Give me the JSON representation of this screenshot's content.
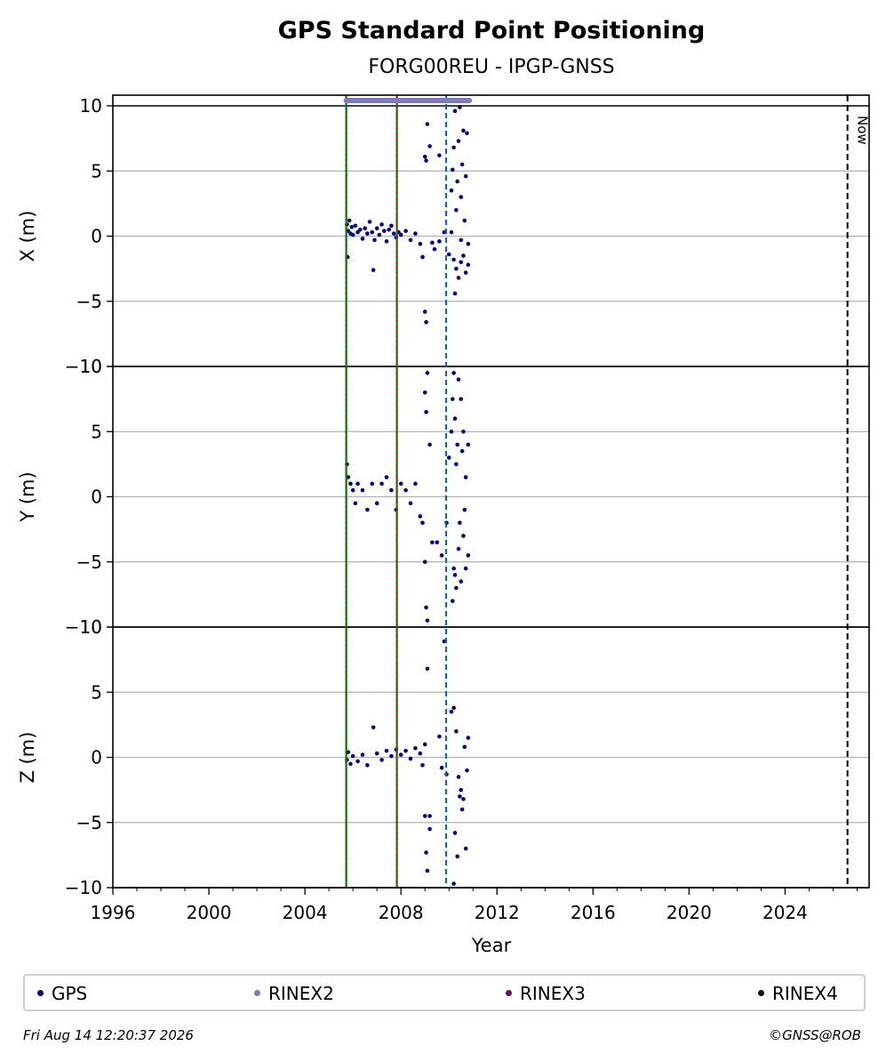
{
  "title": "GPS Standard Point Positioning",
  "subtitle": "FORG00REU - IPGP-GNSS",
  "chart_data": {
    "type": "scatter",
    "xlabel": "Year",
    "xlim": [
      1996,
      2027.5
    ],
    "xticks": [
      1996,
      2000,
      2004,
      2008,
      2012,
      2016,
      2020,
      2024
    ],
    "now_label": "Now",
    "now_year": 2026.6,
    "event_lines_red_green": [
      2005.72,
      2007.83
    ],
    "event_lines_blue": [
      2009.88
    ],
    "rinex2_coverage": [
      2005.72,
      2010.85
    ],
    "panels": [
      {
        "ylabel": "X (m)",
        "ylim": [
          -10,
          10
        ],
        "yticks": [
          -10,
          -5,
          0,
          5,
          10
        ],
        "points": [
          [
            2005.75,
            0.9
          ],
          [
            2005.8,
            0.4
          ],
          [
            2005.85,
            1.2
          ],
          [
            2005.9,
            0.2
          ],
          [
            2005.95,
            0.7
          ],
          [
            2006.0,
            0.1
          ],
          [
            2006.1,
            0.8
          ],
          [
            2006.2,
            0.3
          ],
          [
            2006.3,
            0.5
          ],
          [
            2006.4,
            -0.2
          ],
          [
            2006.5,
            0.6
          ],
          [
            2006.6,
            0.2
          ],
          [
            2006.7,
            1.1
          ],
          [
            2006.8,
            0.3
          ],
          [
            2006.9,
            -0.3
          ],
          [
            2007.0,
            0.6
          ],
          [
            2007.1,
            0.1
          ],
          [
            2007.2,
            0.9
          ],
          [
            2007.3,
            0.4
          ],
          [
            2007.4,
            -0.4
          ],
          [
            2007.5,
            0.5
          ],
          [
            2007.6,
            0.8
          ],
          [
            2007.7,
            0.2
          ],
          [
            2007.8,
            -0.1
          ],
          [
            2007.9,
            0.3
          ],
          [
            2008.0,
            0.1
          ],
          [
            2008.2,
            0.4
          ],
          [
            2008.4,
            -0.3
          ],
          [
            2008.6,
            0.2
          ],
          [
            2008.8,
            -0.6
          ],
          [
            2005.78,
            -1.6
          ],
          [
            2006.85,
            -2.6
          ],
          [
            2008.9,
            -1.6
          ],
          [
            2009.0,
            6.1
          ],
          [
            2009.05,
            5.8
          ],
          [
            2009.1,
            8.6
          ],
          [
            2009.2,
            6.9
          ],
          [
            2009.0,
            -5.8
          ],
          [
            2009.05,
            -6.6
          ],
          [
            2009.6,
            6.2
          ],
          [
            2009.3,
            -0.5
          ],
          [
            2009.4,
            -1.0
          ],
          [
            2009.6,
            -0.4
          ],
          [
            2009.8,
            0.3
          ],
          [
            2010.0,
            -1.4
          ],
          [
            2010.1,
            3.5
          ],
          [
            2010.15,
            5.1
          ],
          [
            2010.2,
            6.8
          ],
          [
            2010.25,
            9.6
          ],
          [
            2010.3,
            2.0
          ],
          [
            2010.35,
            4.2
          ],
          [
            2010.4,
            7.3
          ],
          [
            2010.45,
            9.9
          ],
          [
            2010.5,
            3.0
          ],
          [
            2010.55,
            5.5
          ],
          [
            2010.6,
            8.1
          ],
          [
            2010.65,
            1.2
          ],
          [
            2010.7,
            4.6
          ],
          [
            2010.75,
            7.9
          ],
          [
            2010.8,
            -0.6
          ],
          [
            2010.2,
            -1.8
          ],
          [
            2010.3,
            -2.5
          ],
          [
            2010.4,
            -3.2
          ],
          [
            2010.5,
            -2.0
          ],
          [
            2010.6,
            -1.5
          ],
          [
            2010.7,
            -2.8
          ],
          [
            2010.8,
            -2.2
          ],
          [
            2010.25,
            -4.4
          ],
          [
            2010.1,
            0.3
          ],
          [
            2010.5,
            -0.3
          ]
        ]
      },
      {
        "ylabel": "Y (m)",
        "ylim": [
          -10,
          10
        ],
        "yticks": [
          -10,
          -5,
          0,
          5,
          10
        ],
        "points": [
          [
            2005.75,
            2.5
          ],
          [
            2005.8,
            1.5
          ],
          [
            2005.9,
            1.0
          ],
          [
            2006.0,
            0.5
          ],
          [
            2006.1,
            -0.5
          ],
          [
            2006.2,
            1.0
          ],
          [
            2006.4,
            0.5
          ],
          [
            2006.6,
            -1.0
          ],
          [
            2006.8,
            1.0
          ],
          [
            2007.0,
            -0.5
          ],
          [
            2007.2,
            1.0
          ],
          [
            2007.4,
            1.5
          ],
          [
            2007.6,
            0.5
          ],
          [
            2007.8,
            -1.0
          ],
          [
            2008.0,
            1.0
          ],
          [
            2008.2,
            0.5
          ],
          [
            2008.4,
            -0.5
          ],
          [
            2008.6,
            1.0
          ],
          [
            2008.8,
            -1.5
          ],
          [
            2008.9,
            -2.0
          ],
          [
            2009.0,
            8.0
          ],
          [
            2009.05,
            6.5
          ],
          [
            2009.1,
            9.5
          ],
          [
            2009.0,
            -5.0
          ],
          [
            2009.05,
            -8.5
          ],
          [
            2009.1,
            -9.5
          ],
          [
            2009.2,
            4.0
          ],
          [
            2009.3,
            -3.5
          ],
          [
            2009.5,
            -3.5
          ],
          [
            2009.7,
            -4.5
          ],
          [
            2009.9,
            -2.0
          ],
          [
            2010.0,
            3.0
          ],
          [
            2010.1,
            5.0
          ],
          [
            2010.15,
            7.5
          ],
          [
            2010.2,
            9.5
          ],
          [
            2010.25,
            6.0
          ],
          [
            2010.3,
            2.5
          ],
          [
            2010.35,
            4.0
          ],
          [
            2010.4,
            9.0
          ],
          [
            2010.5,
            7.5
          ],
          [
            2010.55,
            3.5
          ],
          [
            2010.6,
            5.0
          ],
          [
            2010.7,
            1.5
          ],
          [
            2010.8,
            4.0
          ],
          [
            2010.2,
            -5.5
          ],
          [
            2010.25,
            -6.0
          ],
          [
            2010.3,
            -7.0
          ],
          [
            2010.4,
            -4.0
          ],
          [
            2010.5,
            -6.5
          ],
          [
            2010.6,
            -3.0
          ],
          [
            2010.7,
            -5.5
          ],
          [
            2010.8,
            -4.5
          ],
          [
            2010.15,
            -8.0
          ],
          [
            2010.45,
            -2.0
          ],
          [
            2010.65,
            -1.0
          ]
        ]
      },
      {
        "ylabel": "Z (m)",
        "ylim": [
          -10,
          10
        ],
        "yticks": [
          -10,
          -5,
          0,
          5,
          10
        ],
        "points": [
          [
            2005.75,
            -0.2
          ],
          [
            2005.8,
            0.4
          ],
          [
            2005.9,
            -0.5
          ],
          [
            2006.0,
            0.1
          ],
          [
            2006.2,
            -0.3
          ],
          [
            2006.4,
            0.2
          ],
          [
            2006.6,
            -0.6
          ],
          [
            2006.85,
            2.3
          ],
          [
            2007.0,
            0.3
          ],
          [
            2007.2,
            -0.2
          ],
          [
            2007.4,
            0.5
          ],
          [
            2007.6,
            0.1
          ],
          [
            2007.8,
            0.6
          ],
          [
            2008.0,
            0.2
          ],
          [
            2008.2,
            0.5
          ],
          [
            2008.4,
            -0.1
          ],
          [
            2008.6,
            0.7
          ],
          [
            2008.8,
            0.3
          ],
          [
            2008.9,
            -0.6
          ],
          [
            2009.0,
            -4.5
          ],
          [
            2009.05,
            -7.3
          ],
          [
            2009.1,
            -8.7
          ],
          [
            2009.2,
            -4.5
          ],
          [
            2009.1,
            6.8
          ],
          [
            2009.2,
            -5.5
          ],
          [
            2009.0,
            1.0
          ],
          [
            2009.6,
            1.6
          ],
          [
            2009.7,
            -0.8
          ],
          [
            2009.8,
            8.9
          ],
          [
            2009.9,
            -1.3
          ],
          [
            2010.1,
            3.5
          ],
          [
            2010.2,
            3.8
          ],
          [
            2010.3,
            2.0
          ],
          [
            2010.4,
            -1.5
          ],
          [
            2010.5,
            -2.5
          ],
          [
            2010.55,
            -4.0
          ],
          [
            2010.6,
            -3.2
          ],
          [
            2010.7,
            -7.0
          ],
          [
            2010.8,
            1.5
          ],
          [
            2010.25,
            -5.8
          ],
          [
            2010.35,
            -7.6
          ],
          [
            2010.2,
            -9.7
          ],
          [
            2010.45,
            -3.0
          ],
          [
            2010.65,
            0.8
          ],
          [
            2010.75,
            -1.0
          ]
        ]
      }
    ],
    "legend": [
      {
        "label": "GPS",
        "color": "#00008b"
      },
      {
        "label": "RINEX2",
        "color": "#7b7bbd"
      },
      {
        "label": "RINEX3",
        "color": "#6a0a6a"
      },
      {
        "label": "RINEX4",
        "color": "#1a0a1a"
      }
    ]
  },
  "footer": {
    "timestamp": "Fri Aug 14 12:20:37 2026",
    "copyright": "©GNSS@ROB"
  }
}
